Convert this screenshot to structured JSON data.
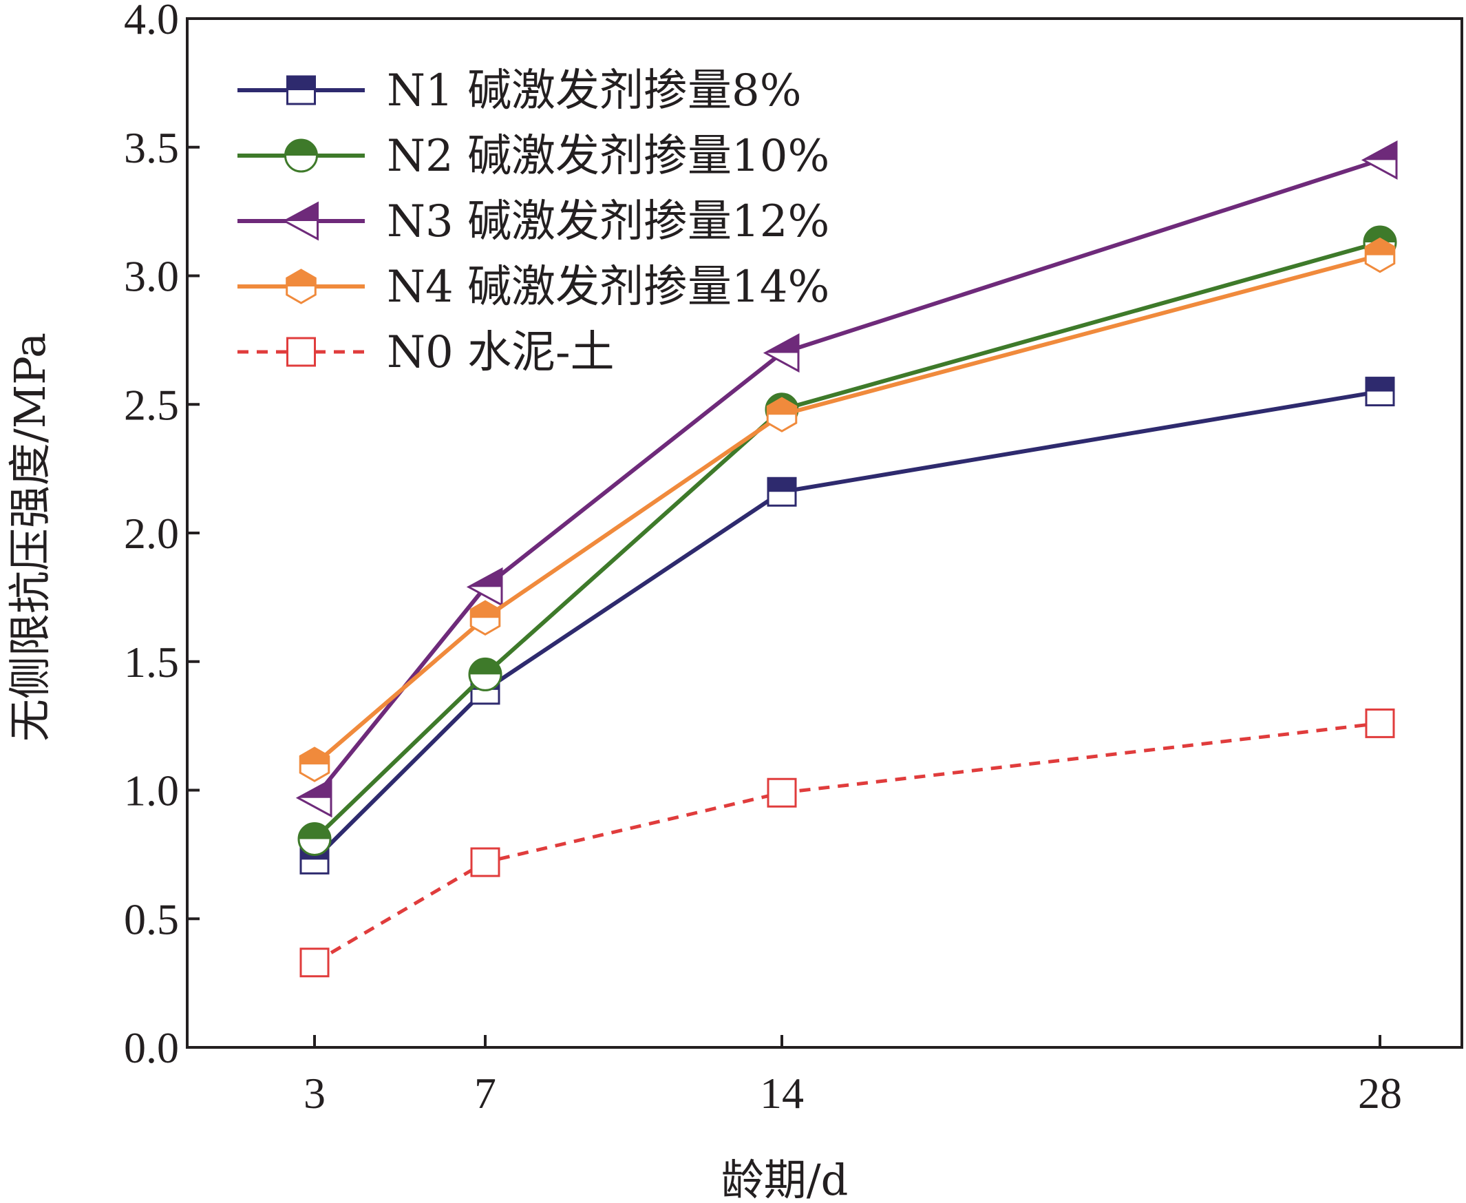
{
  "chart_data": {
    "type": "line",
    "title": "",
    "xlabel": "龄期/d",
    "ylabel": "无侧限抗压强度/MPa",
    "x": [
      3,
      7,
      14,
      28
    ],
    "x_tick_labels": [
      "3",
      "7",
      "14",
      "28"
    ],
    "ylim": [
      0.0,
      4.0
    ],
    "y_ticks": [
      0.0,
      0.5,
      1.0,
      1.5,
      2.0,
      2.5,
      3.0,
      3.5,
      4.0
    ],
    "y_tick_labels": [
      "0.0",
      "0.5",
      "1.0",
      "1.5",
      "2.0",
      "2.5",
      "3.0",
      "3.5",
      "4.0"
    ],
    "grid": false,
    "legend_position": "top-left",
    "series": [
      {
        "name": "N1 碱激发剂掺量8%",
        "values": [
          0.73,
          1.39,
          2.16,
          2.55
        ],
        "color": "#2e2a6e",
        "marker": "square-half",
        "line_style": "solid"
      },
      {
        "name": "N2 碱激发剂掺量10%",
        "values": [
          0.81,
          1.45,
          2.48,
          3.13
        ],
        "color": "#3e7a2a",
        "marker": "circle-half",
        "line_style": "solid"
      },
      {
        "name": "N3 碱激发剂掺量12%",
        "values": [
          0.97,
          1.79,
          2.7,
          3.45
        ],
        "color": "#6e2a7a",
        "marker": "triangle-left-half",
        "line_style": "solid"
      },
      {
        "name": "N4 碱激发剂掺量14%",
        "values": [
          1.1,
          1.67,
          2.46,
          3.08
        ],
        "color": "#f08a3c",
        "marker": "hexagon-half",
        "line_style": "solid"
      },
      {
        "name": "N0 水泥-土",
        "values": [
          0.33,
          0.72,
          0.99,
          1.26
        ],
        "color": "#e03c3c",
        "marker": "square-open",
        "line_style": "dashed"
      }
    ]
  }
}
